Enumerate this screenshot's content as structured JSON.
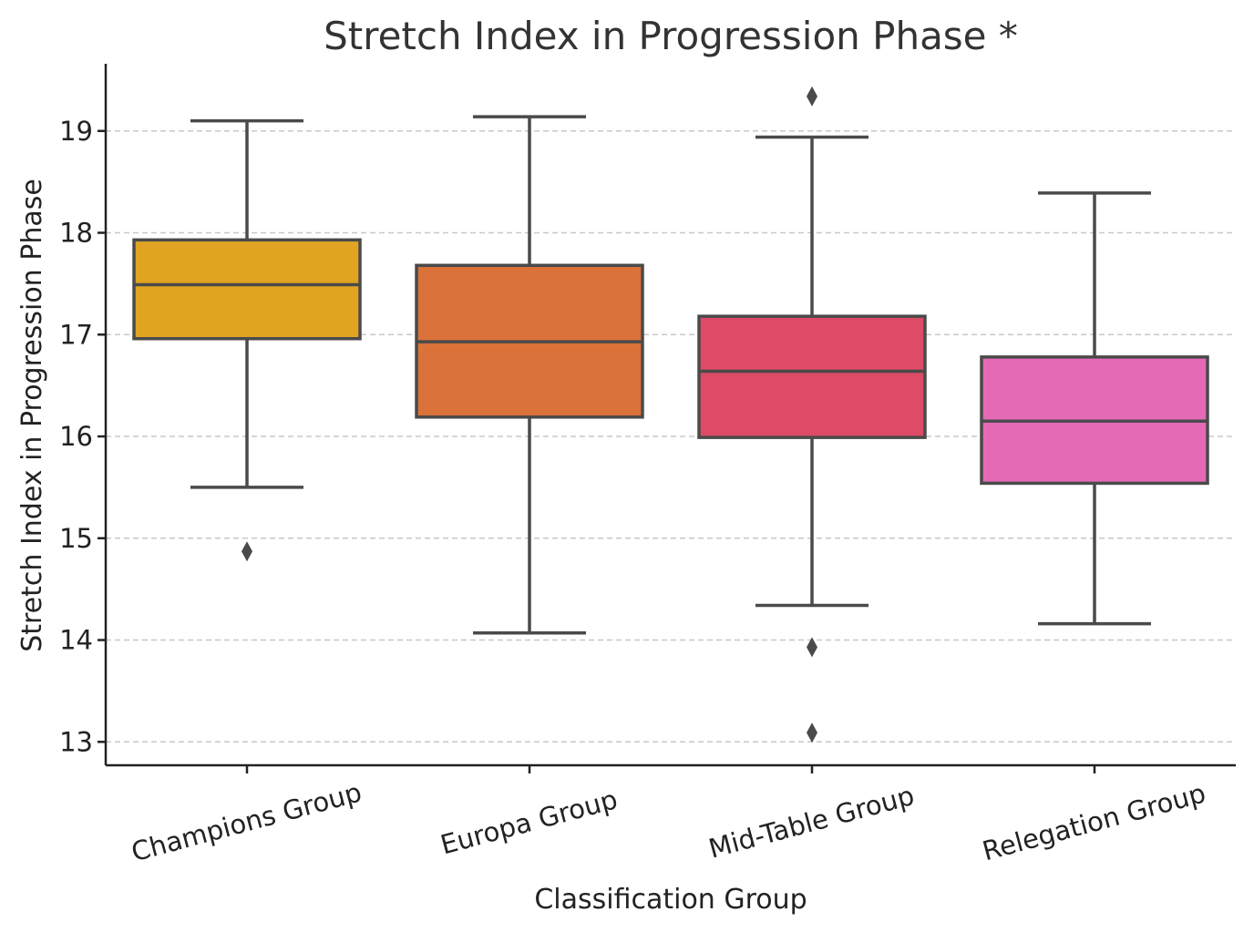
{
  "chart_data": {
    "type": "box",
    "title": "Stretch Index in Progression Phase *",
    "xlabel": "Classification Group",
    "ylabel": "Stretch Index in Progression Phase",
    "ylim": [
      12.77,
      19.66
    ],
    "yticks": [
      13,
      14,
      15,
      16,
      17,
      18,
      19
    ],
    "grid": "y-dashed",
    "categories": [
      "Champions Group",
      "Europa Group",
      "Mid-Table Group",
      "Relegation Group"
    ],
    "boxes": [
      {
        "category": "Champions Group",
        "whisker_low": 15.5,
        "q1": 16.96,
        "median": 17.49,
        "q3": 17.93,
        "whisker_high": 19.1,
        "outliers": [
          14.87
        ],
        "color": "#e0a422"
      },
      {
        "category": "Europa Group",
        "whisker_low": 14.07,
        "q1": 16.19,
        "median": 16.93,
        "q3": 17.68,
        "whisker_high": 19.14,
        "outliers": [],
        "color": "#db723a"
      },
      {
        "category": "Mid-Table Group",
        "whisker_low": 14.34,
        "q1": 15.99,
        "median": 16.64,
        "q3": 17.18,
        "whisker_high": 18.94,
        "outliers": [
          19.34,
          13.93,
          13.09
        ],
        "color": "#dd4b67"
      },
      {
        "category": "Relegation Group",
        "whisker_low": 14.16,
        "q1": 15.54,
        "median": 16.15,
        "q3": 16.78,
        "whisker_high": 18.39,
        "outliers": [],
        "color": "#e46ab6"
      }
    ]
  }
}
